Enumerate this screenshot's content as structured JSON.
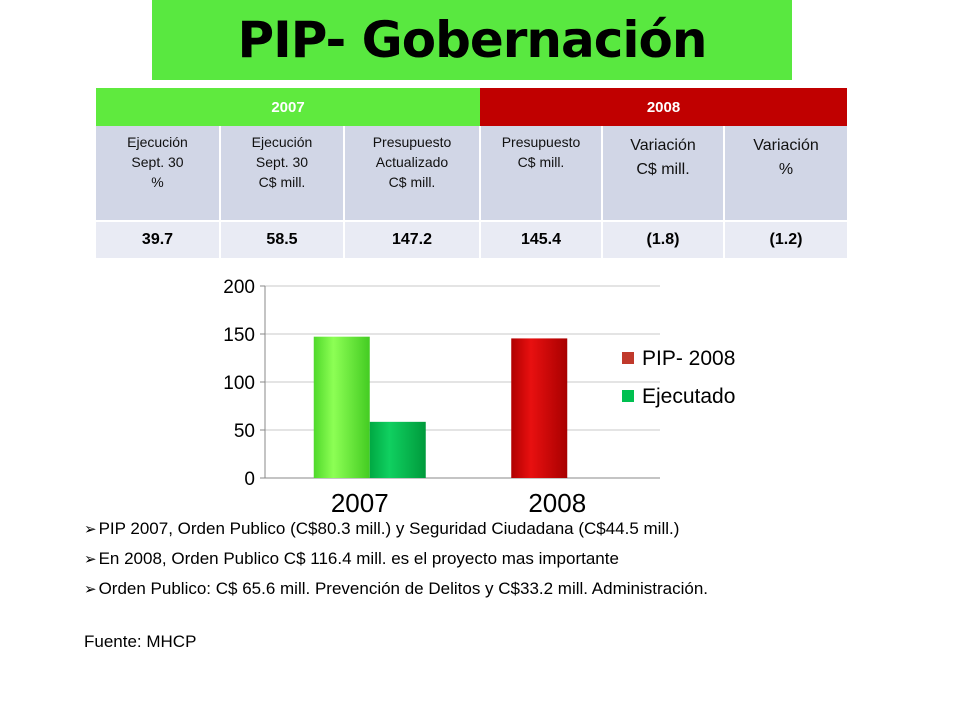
{
  "title": "PIP- Gobernación",
  "table": {
    "group_headers": [
      {
        "label": "2007",
        "colspan": 3,
        "color": "#5fea3e"
      },
      {
        "label": "2008",
        "colspan": 3,
        "color": "#c00000"
      }
    ],
    "columns": [
      "Ejecución\nSept. 30\n%",
      "Ejecución\nSept. 30\nC$ mill.",
      "Presupuesto\nActualizado\nC$ mill.",
      "Presupuesto\nC$ mill.",
      "Variación\nC$ mill.",
      "Variación\n%"
    ],
    "values": [
      "39.7",
      "58.5",
      "147.2",
      "145.4",
      "(1.8)",
      "(1.2)"
    ]
  },
  "chart_data": {
    "type": "bar",
    "categories": [
      "2007",
      "2008"
    ],
    "series": [
      {
        "name": "PIP- 2008",
        "values": [
          147.2,
          145.4
        ],
        "colors": [
          "#66ee33",
          "#d40000"
        ]
      },
      {
        "name": "Ejecutado",
        "values": [
          58.5,
          null
        ],
        "colors": [
          "#00c050",
          "#00c050"
        ]
      }
    ],
    "legend_swatches": [
      "#c0392b",
      "#00c050"
    ],
    "yticks": [
      "0",
      "50",
      "100",
      "150",
      "200"
    ],
    "ylim": [
      0,
      200
    ],
    "grid": true,
    "legend": "right"
  },
  "bullets": [
    "PIP 2007, Orden Publico (C$80.3 mill.) y Seguridad Ciudadana (C$44.5 mill.)",
    "En 2008, Orden Publico  C$ 116.4 mill. es el proyecto mas importante",
    "Orden Publico: C$ 65.6 mill. Prevención de Delitos y C$33.2 mill. Administración."
  ],
  "source": "Fuente: MHCP"
}
